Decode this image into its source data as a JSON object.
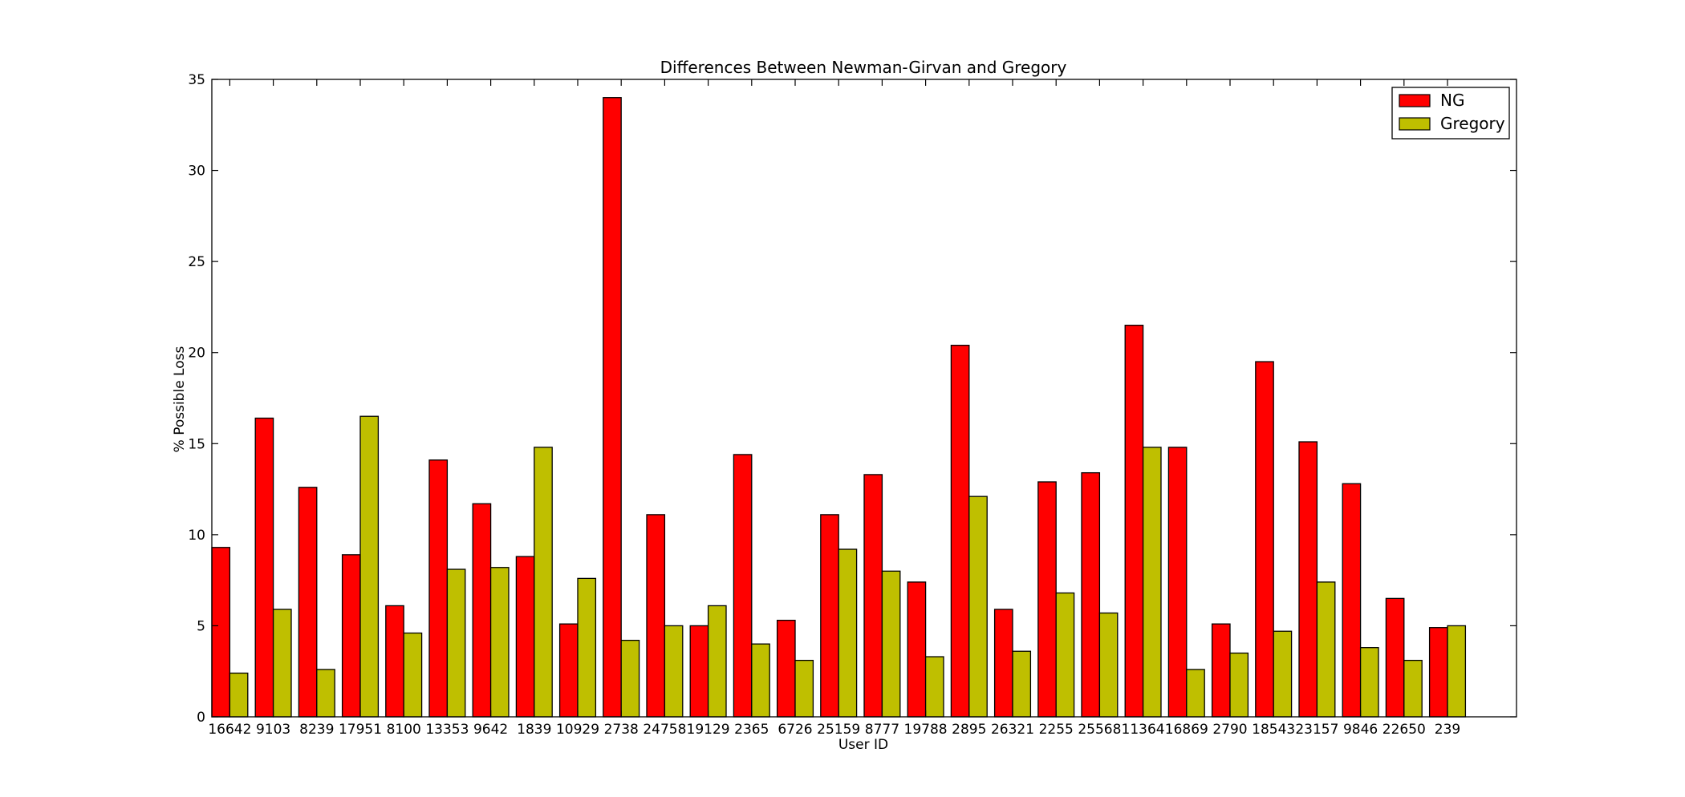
{
  "chart_data": {
    "type": "bar",
    "title": "Differences Between Newman-Girvan and Gregory",
    "xlabel": "User ID",
    "ylabel": "% Possible Loss",
    "ylim": [
      0,
      35
    ],
    "yticks": [
      0,
      5,
      10,
      15,
      20,
      25,
      30,
      35
    ],
    "grid": false,
    "legend_position": "top-right",
    "categories": [
      "16642",
      "9103",
      "8239",
      "17951",
      "8100",
      "13353",
      "9642",
      "1839",
      "10929",
      "2738",
      "24758",
      "19129",
      "2365",
      "6726",
      "25159",
      "8777",
      "19788",
      "2895",
      "26321",
      "2255",
      "25568",
      "11364",
      "16869",
      "2790",
      "18543",
      "23157",
      "9846",
      "22650",
      "239"
    ],
    "series": [
      {
        "name": "NG",
        "color": "#ff0000",
        "values": [
          9.3,
          16.4,
          12.6,
          8.9,
          6.1,
          14.1,
          11.7,
          8.8,
          5.1,
          34.0,
          11.1,
          5.0,
          14.4,
          5.3,
          11.1,
          13.3,
          7.4,
          20.4,
          5.9,
          12.9,
          13.4,
          21.5,
          14.8,
          5.1,
          19.5,
          15.1,
          12.8,
          6.5,
          4.9
        ]
      },
      {
        "name": "Gregory",
        "color": "#bfbf00",
        "values": [
          2.4,
          5.9,
          2.6,
          16.5,
          4.6,
          8.1,
          8.2,
          14.8,
          7.6,
          4.2,
          5.0,
          6.1,
          4.0,
          3.1,
          9.2,
          8.0,
          3.3,
          12.1,
          3.6,
          6.8,
          5.7,
          14.8,
          2.6,
          3.5,
          4.7,
          7.4,
          3.8,
          3.1,
          5.0
        ]
      }
    ]
  }
}
